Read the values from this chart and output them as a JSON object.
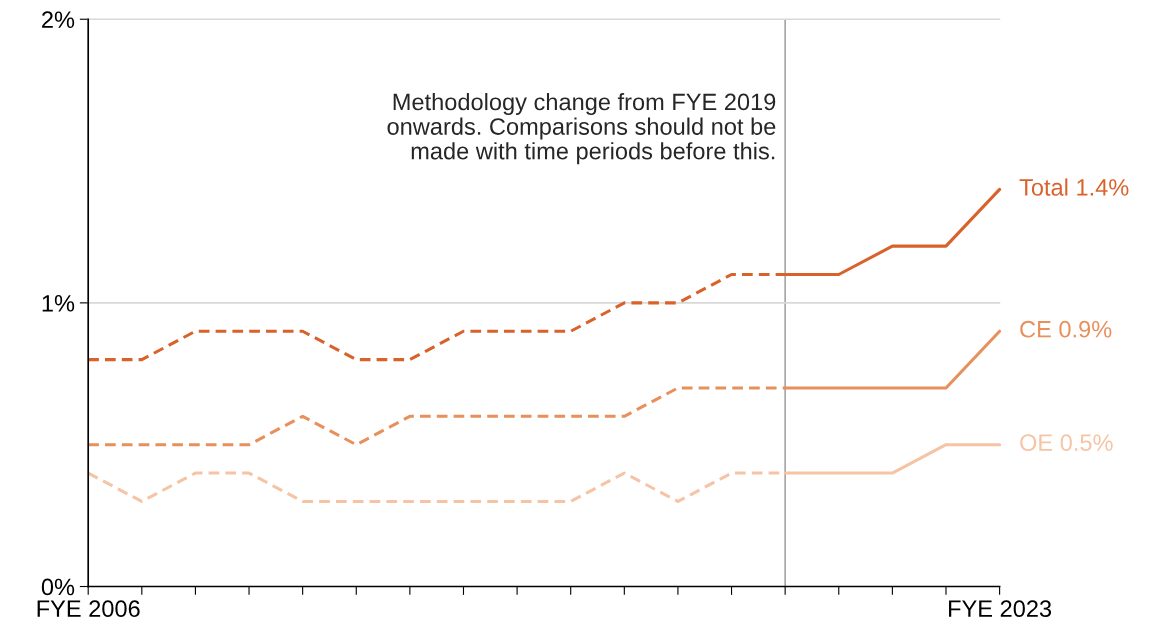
{
  "chart_data": {
    "type": "line",
    "categories": [
      "FYE 2006",
      null,
      null,
      null,
      null,
      null,
      null,
      null,
      null,
      null,
      null,
      null,
      null,
      null,
      null,
      null,
      null,
      "FYE 2023"
    ],
    "series": [
      {
        "color": "#d9622b",
        "line_style": "dashed",
        "values": [
          0.8,
          0.8,
          0.9,
          0.9,
          0.9,
          0.8,
          0.8,
          0.9,
          0.9,
          0.9,
          1.0,
          1.0,
          1.1,
          1.1,
          null,
          null,
          null,
          null
        ]
      },
      {
        "name": "Total 1.4%",
        "color": "#d9622b",
        "line_style": "solid",
        "values": [
          null,
          null,
          null,
          null,
          null,
          null,
          null,
          null,
          null,
          null,
          null,
          null,
          null,
          1.1,
          1.1,
          1.2,
          1.2,
          1.4
        ]
      },
      {
        "color": "#e8905c",
        "line_style": "dashed",
        "values": [
          0.5,
          0.5,
          0.5,
          0.5,
          0.6,
          0.5,
          0.6,
          0.6,
          0.6,
          0.6,
          0.6,
          0.7,
          0.7,
          0.7,
          null,
          null,
          null,
          null
        ]
      },
      {
        "name": "CE 0.9%",
        "color": "#e8905c",
        "line_style": "solid",
        "values": [
          null,
          null,
          null,
          null,
          null,
          null,
          null,
          null,
          null,
          null,
          null,
          null,
          null,
          0.7,
          0.7,
          0.7,
          0.7,
          0.9
        ]
      },
      {
        "color": "#f5c4a5",
        "line_style": "dashed",
        "values": [
          0.4,
          0.3,
          0.4,
          0.4,
          0.3,
          0.3,
          0.3,
          0.3,
          0.3,
          0.3,
          0.4,
          0.3,
          0.4,
          0.4,
          null,
          null,
          null,
          null
        ]
      },
      {
        "name": "OE 0.5%",
        "color": "#f5c4a5",
        "line_style": "solid",
        "values": [
          null,
          null,
          null,
          null,
          null,
          null,
          null,
          null,
          null,
          null,
          null,
          null,
          null,
          0.4,
          0.4,
          0.4,
          0.5,
          0.5
        ]
      }
    ],
    "ylim": [
      0,
      2
    ],
    "yticks": [
      {
        "value": 0,
        "label": "0%"
      },
      {
        "value": 1,
        "label": "1%"
      },
      {
        "value": 2,
        "label": "2%"
      }
    ],
    "ref_lines": [
      {
        "axis": "y",
        "value": 1,
        "color": "#d9d9d9",
        "line_style": "solid"
      },
      {
        "axis": "y",
        "value": 2,
        "color": "#d9d9d9",
        "line_style": "solid"
      }
    ],
    "legend": false,
    "marker": "none",
    "annotations": [
      "Methodology change from FYE 2019\nonwards. Comparisons should not be\nmade with time periods before this."
    ]
  }
}
